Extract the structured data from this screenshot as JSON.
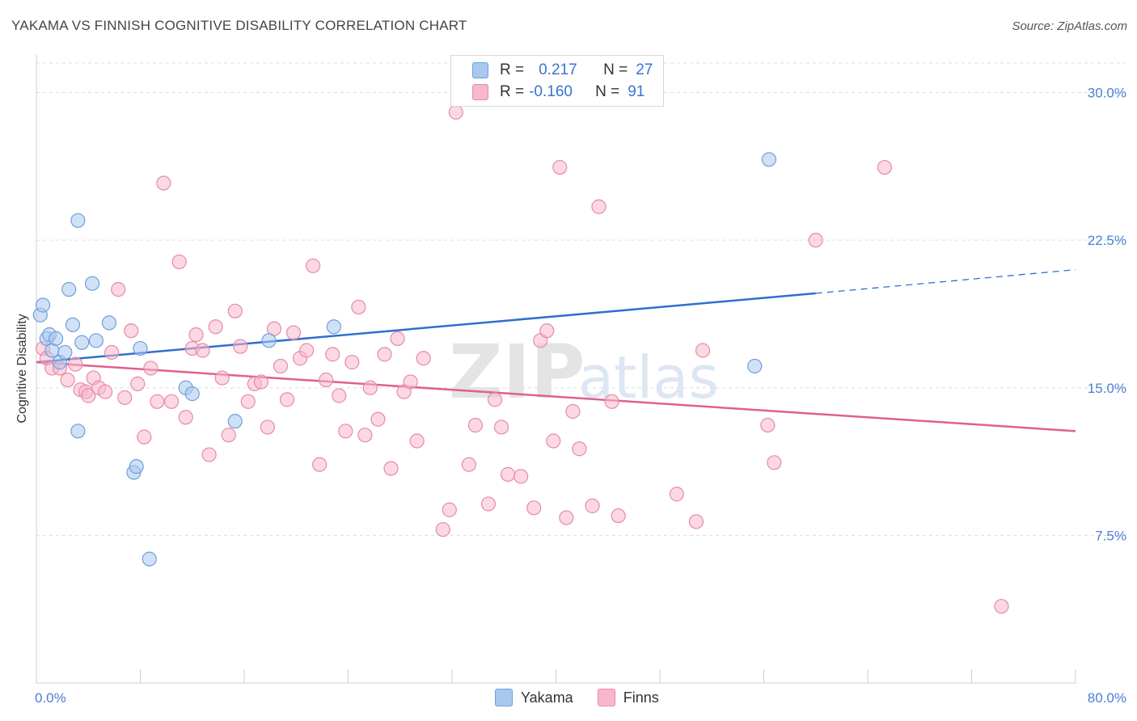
{
  "chart_data": {
    "type": "scatter",
    "title": "YAKAMA VS FINNISH COGNITIVE DISABILITY CORRELATION CHART",
    "source": "Source: ZipAtlas.com",
    "ylabel": "Cognitive Disability",
    "xlabel": "",
    "xlim": [
      0,
      80
    ],
    "ylim": [
      0,
      31.5
    ],
    "x_tick_labels": [
      "0.0%",
      "80.0%"
    ],
    "y_ticks": [
      7.5,
      15.0,
      22.5,
      30.0
    ],
    "y_tick_labels": [
      "7.5%",
      "15.0%",
      "22.5%",
      "30.0%"
    ],
    "grid": true,
    "watermark": "ZIPatlas",
    "legend_stats": [
      {
        "r_label": "R =",
        "r_value": "0.217",
        "n_label": "N =",
        "n_value": "27"
      },
      {
        "r_label": "R =",
        "r_value": "-0.160",
        "n_label": "N =",
        "n_value": "91"
      }
    ],
    "series": [
      {
        "name": "Yakama",
        "color": "#a9c8ef",
        "edge_color": "#6f9fdc",
        "trend_color": "#2f6fd0",
        "trend": {
          "x0": 0,
          "y0": 16.3,
          "x1": 60,
          "y1": 19.8,
          "dash_to_x": 80,
          "dash_to_y": 21.0
        },
        "points": [
          [
            0.3,
            18.7
          ],
          [
            0.5,
            19.2
          ],
          [
            0.8,
            17.5
          ],
          [
            1.0,
            17.7
          ],
          [
            1.2,
            16.9
          ],
          [
            1.5,
            17.5
          ],
          [
            1.8,
            16.3
          ],
          [
            2.2,
            16.8
          ],
          [
            2.5,
            20.0
          ],
          [
            2.8,
            18.2
          ],
          [
            3.2,
            12.8
          ],
          [
            3.2,
            23.5
          ],
          [
            3.5,
            17.3
          ],
          [
            4.3,
            20.3
          ],
          [
            4.6,
            17.4
          ],
          [
            5.6,
            18.3
          ],
          [
            7.5,
            10.7
          ],
          [
            7.7,
            11.0
          ],
          [
            8.0,
            17.0
          ],
          [
            8.7,
            6.3
          ],
          [
            11.5,
            15.0
          ],
          [
            12.0,
            14.7
          ],
          [
            15.3,
            13.3
          ],
          [
            17.9,
            17.4
          ],
          [
            22.9,
            18.1
          ],
          [
            55.3,
            16.1
          ],
          [
            56.4,
            26.6
          ]
        ]
      },
      {
        "name": "Finns",
        "color": "#f7b8cb",
        "edge_color": "#e88aa8",
        "trend_color": "#e0608c",
        "trend": {
          "x0": 0,
          "y0": 16.3,
          "x1": 80,
          "y1": 12.8
        },
        "points": [
          [
            0.5,
            17.0
          ],
          [
            0.8,
            16.5
          ],
          [
            1.2,
            16.0
          ],
          [
            1.8,
            16.0
          ],
          [
            2.4,
            15.4
          ],
          [
            3.0,
            16.2
          ],
          [
            3.4,
            14.9
          ],
          [
            3.8,
            14.8
          ],
          [
            4.0,
            14.6
          ],
          [
            4.4,
            15.5
          ],
          [
            4.8,
            15.0
          ],
          [
            5.3,
            14.8
          ],
          [
            5.8,
            16.8
          ],
          [
            6.3,
            20.0
          ],
          [
            6.8,
            14.5
          ],
          [
            7.3,
            17.9
          ],
          [
            7.8,
            15.2
          ],
          [
            8.3,
            12.5
          ],
          [
            8.8,
            16.0
          ],
          [
            9.3,
            14.3
          ],
          [
            9.8,
            25.4
          ],
          [
            10.4,
            14.3
          ],
          [
            11.0,
            21.4
          ],
          [
            11.5,
            13.5
          ],
          [
            12.0,
            17.0
          ],
          [
            12.3,
            17.7
          ],
          [
            12.8,
            16.9
          ],
          [
            13.3,
            11.6
          ],
          [
            13.8,
            18.1
          ],
          [
            14.3,
            15.5
          ],
          [
            14.8,
            12.6
          ],
          [
            15.3,
            18.9
          ],
          [
            15.7,
            17.1
          ],
          [
            16.3,
            14.3
          ],
          [
            16.8,
            15.2
          ],
          [
            17.3,
            15.3
          ],
          [
            17.8,
            13.0
          ],
          [
            18.3,
            18.0
          ],
          [
            18.8,
            16.1
          ],
          [
            19.3,
            14.4
          ],
          [
            19.8,
            17.8
          ],
          [
            20.3,
            16.5
          ],
          [
            20.8,
            16.9
          ],
          [
            21.3,
            21.2
          ],
          [
            21.8,
            11.1
          ],
          [
            22.3,
            15.4
          ],
          [
            22.8,
            16.7
          ],
          [
            23.3,
            14.6
          ],
          [
            23.8,
            12.8
          ],
          [
            24.3,
            16.3
          ],
          [
            24.8,
            19.1
          ],
          [
            25.3,
            12.6
          ],
          [
            25.7,
            15.0
          ],
          [
            26.3,
            13.4
          ],
          [
            26.8,
            16.7
          ],
          [
            27.3,
            10.9
          ],
          [
            27.8,
            17.5
          ],
          [
            28.3,
            14.8
          ],
          [
            28.8,
            15.3
          ],
          [
            29.3,
            12.3
          ],
          [
            29.8,
            16.5
          ],
          [
            31.3,
            7.8
          ],
          [
            31.8,
            8.8
          ],
          [
            32.3,
            29.0
          ],
          [
            33.3,
            11.1
          ],
          [
            33.8,
            13.1
          ],
          [
            34.8,
            9.1
          ],
          [
            35.3,
            14.4
          ],
          [
            35.8,
            13.0
          ],
          [
            36.3,
            10.6
          ],
          [
            37.3,
            10.5
          ],
          [
            38.3,
            8.9
          ],
          [
            38.8,
            17.4
          ],
          [
            39.3,
            17.9
          ],
          [
            39.8,
            12.3
          ],
          [
            40.3,
            26.2
          ],
          [
            40.8,
            8.4
          ],
          [
            41.3,
            13.8
          ],
          [
            41.8,
            11.9
          ],
          [
            42.8,
            9.0
          ],
          [
            43.3,
            24.2
          ],
          [
            44.3,
            14.3
          ],
          [
            44.8,
            8.5
          ],
          [
            49.3,
            9.6
          ],
          [
            50.8,
            8.2
          ],
          [
            51.3,
            16.9
          ],
          [
            56.3,
            13.1
          ],
          [
            56.8,
            11.2
          ],
          [
            60.0,
            22.5
          ],
          [
            65.3,
            26.2
          ],
          [
            74.3,
            3.9
          ]
        ]
      }
    ]
  }
}
